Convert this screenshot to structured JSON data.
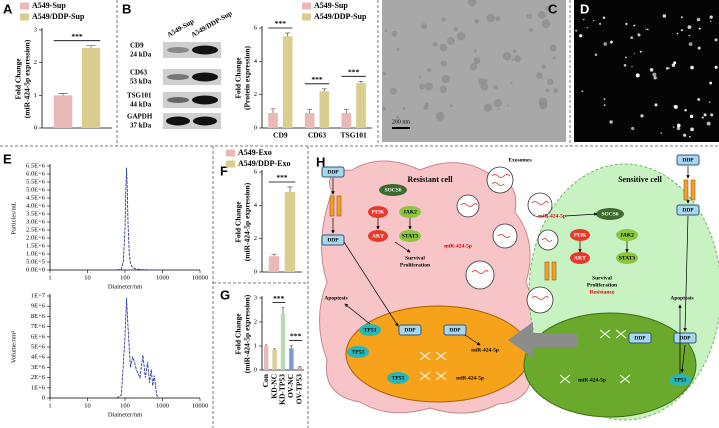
{
  "chart_data": [
    {
      "type": "bar",
      "panel": "A",
      "ylabel": [
        "Fold Change",
        "(miR-424-5p expression)"
      ],
      "series": [
        {
          "name": "A549-Sup",
          "color": "#e9b9b8",
          "values": [
            1.0
          ],
          "errors": [
            0.06
          ]
        },
        {
          "name": "A549/DDP-Sup",
          "color": "#d9cd8f",
          "values": [
            2.45
          ],
          "errors": [
            0.07
          ]
        }
      ],
      "ylim": [
        0,
        3
      ],
      "yticks": [
        0,
        1,
        2,
        3
      ],
      "significance": [
        "***"
      ]
    },
    {
      "type": "bar",
      "panel": "B",
      "ylabel": [
        "Fold Change",
        "(Protein expression)"
      ],
      "categories": [
        "CD9",
        "CD63",
        "TSG101"
      ],
      "series": [
        {
          "name": "A549-Sup",
          "color": "#e9b9b8",
          "values": [
            0.9,
            0.9,
            0.9
          ],
          "errors": [
            0.25,
            0.2,
            0.2
          ]
        },
        {
          "name": "A549/DDP-Sup",
          "color": "#d9cd8f",
          "values": [
            5.5,
            2.2,
            2.7
          ],
          "errors": [
            0.2,
            0.15,
            0.1
          ]
        }
      ],
      "ylim": [
        0,
        6
      ],
      "yticks": [
        0,
        2,
        4,
        6
      ],
      "significance": [
        "***",
        "***",
        "***"
      ]
    },
    {
      "type": "bar",
      "panel": "F",
      "ylabel": [
        "Fold Change",
        "(miR-424-5p expression)"
      ],
      "series": [
        {
          "name": "A549-Exo",
          "color": "#e9b9b8",
          "values": [
            0.95
          ],
          "errors": [
            0.12
          ]
        },
        {
          "name": "A549/DDP-Exo",
          "color": "#d9cd8f",
          "values": [
            4.8
          ],
          "errors": [
            0.3
          ]
        }
      ],
      "ylim": [
        0,
        6
      ],
      "yticks": [
        0,
        2,
        4,
        6
      ],
      "significance": [
        "***"
      ]
    },
    {
      "type": "bar",
      "panel": "G",
      "ylabel": [
        "Fold Change",
        "(miR-424-5p expression)"
      ],
      "categories": [
        "Con",
        "KD-NC",
        "KD-TP53",
        "OV-NC",
        "OV-TP53"
      ],
      "values": [
        1.0,
        0.85,
        2.35,
        0.9,
        0.12
      ],
      "errors": [
        0.05,
        0.04,
        0.25,
        0.12,
        0.03
      ],
      "colors": [
        "#e9b9b8",
        "#d9cd8f",
        "#b6dbb2",
        "#7e9bcf",
        "#d9a3c3"
      ],
      "ylim": [
        0,
        3
      ],
      "yticks": [
        0,
        1,
        2,
        3
      ],
      "significance": [
        "***",
        "***"
      ]
    },
    {
      "type": "line",
      "panel": "E",
      "xscale": "log",
      "xlabel": "Diameter/nm",
      "ylabel": [
        "Particles/mL"
      ],
      "x": [
        60,
        80,
        90,
        100,
        105,
        110,
        115,
        120,
        130,
        140,
        160,
        200,
        300,
        500,
        1000
      ],
      "values": [
        0,
        50000,
        500000,
        2500000,
        5000000,
        6400000,
        5000000,
        3000000,
        1000000,
        400000,
        150000,
        50000,
        20000,
        0,
        0
      ],
      "color": "#2d3a9c",
      "xlim": [
        1,
        10000
      ],
      "xticks": [
        1,
        10,
        100,
        1000,
        10000
      ],
      "ylim": [
        0,
        6500000
      ],
      "yticks": [
        {
          "value": 0,
          "label": "0.0E+0"
        },
        {
          "value": 500000,
          "label": "5.0E+5"
        },
        {
          "value": 1000000,
          "label": "1.0E+6"
        },
        {
          "value": 1500000,
          "label": "1.5E+6"
        },
        {
          "value": 2000000,
          "label": "2.0E+6"
        },
        {
          "value": 2500000,
          "label": "2.5E+6"
        },
        {
          "value": 3000000,
          "label": "3.0E+6"
        },
        {
          "value": 3500000,
          "label": "3.5E+6"
        },
        {
          "value": 4000000,
          "label": "4.0E+6"
        },
        {
          "value": 4500000,
          "label": "4.5E+6"
        },
        {
          "value": 5000000,
          "label": "5.0E+6"
        },
        {
          "value": 5500000,
          "label": "5.5E+6"
        },
        {
          "value": 6000000,
          "label": "6.0E+6"
        },
        {
          "value": 6500000,
          "label": "6.5E+6"
        }
      ]
    },
    {
      "type": "line",
      "xscale": "log",
      "xlabel": "Diameter/nm",
      "ylabel": [
        "Volume/nm³"
      ],
      "x": [
        60,
        80,
        100,
        110,
        120,
        140,
        160,
        180,
        200,
        250,
        300,
        350,
        400,
        450,
        500,
        550,
        600,
        700,
        800
      ],
      "values": [
        0,
        300000,
        6000000,
        9800000,
        7000000,
        3000000,
        4000000,
        3500000,
        2800000,
        2000000,
        4200000,
        2000000,
        3500000,
        1500000,
        2800000,
        1200000,
        2200000,
        300000,
        0
      ],
      "color": "#2d3a9c",
      "xlim": [
        1,
        10000
      ],
      "xticks": [
        1,
        10,
        100,
        1000,
        10000
      ],
      "ylim": [
        0,
        10000000
      ],
      "yticks": [
        0,
        {
          "value": 1000000,
          "label": "1E+6"
        },
        {
          "value": 2000000,
          "label": "2E+6"
        },
        {
          "value": 3000000,
          "label": "3E+6"
        },
        {
          "value": 4000000,
          "label": "4E+6"
        },
        {
          "value": 5000000,
          "label": "5E+6"
        },
        {
          "value": 6000000,
          "label": "6E+6"
        },
        {
          "value": 7000000,
          "label": "7E+6"
        },
        {
          "value": 8000000,
          "label": "8E+6"
        },
        {
          "value": 9000000,
          "label": "9E+6"
        },
        {
          "value": 10000000,
          "label": "1E+7"
        }
      ]
    }
  ],
  "blot": {
    "columns": [
      "A549-Sup",
      "A549/DDP-Sup"
    ],
    "rows": [
      {
        "protein": "CD9",
        "size": "24 kDa"
      },
      {
        "protein": "CD63",
        "size": "53 kDa"
      },
      {
        "protein": "TSG101",
        "size": "44 kDa"
      },
      {
        "protein": "GAPDH",
        "size": "37 kDa"
      }
    ]
  },
  "image_c": {
    "panel": "C",
    "scale_bar": "200 nm"
  },
  "image_d": {
    "panel": "D"
  },
  "diagram": {
    "panel": "H",
    "labels": [
      "Resistant cell",
      "Sensitive cell",
      "Exosomes",
      "DDP",
      "DDP",
      "SOCS6",
      "JAK2",
      "PI3K",
      "AKT",
      "STAT3",
      "Survival",
      "Proliferation",
      "Apoptosis",
      "DDP",
      "DDP",
      "TP53",
      "TP53",
      "TP53",
      "miR-424-5p",
      "miR-424-5p",
      "miR-424-5p",
      "DDP",
      "DDP",
      "SOCS6",
      "PI3K",
      "JAK2",
      "AKT",
      "STAT3",
      "miR-424-5p",
      "Survival",
      "Proliferation",
      "Resistance",
      "Apoptosis",
      "DDP",
      "DDP",
      "TP53",
      "miR-424-5p"
    ]
  }
}
